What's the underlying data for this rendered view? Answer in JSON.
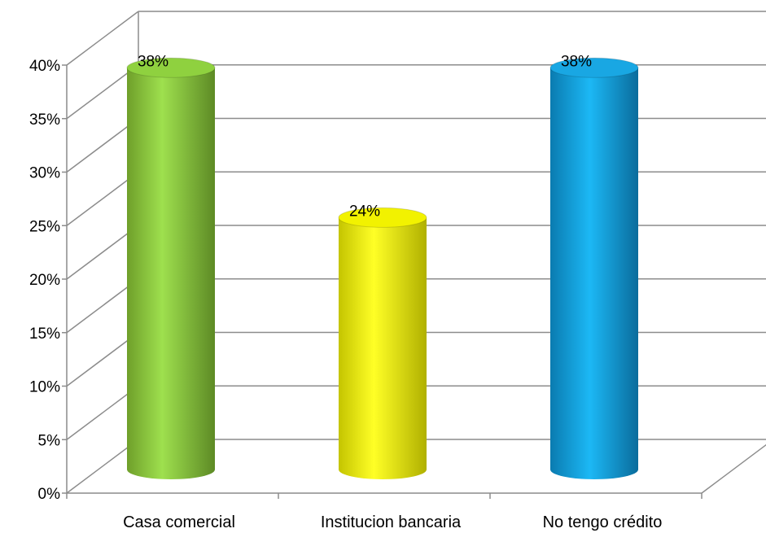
{
  "chart_data": {
    "type": "bar",
    "categories": [
      "Casa comercial",
      "Institucion bancaria",
      "No tengo crédito"
    ],
    "values": [
      38,
      24,
      38
    ],
    "data_labels": [
      "38%",
      "24%",
      "38%"
    ],
    "colors": [
      "#8fd13f",
      "#f2f200",
      "#19a7e3"
    ],
    "ylim": [
      0,
      40
    ],
    "yticks": [
      "0%",
      "5%",
      "10%",
      "15%",
      "20%",
      "25%",
      "30%",
      "35%",
      "40%"
    ],
    "grid": true,
    "legend": "none",
    "title": "",
    "xlabel": "",
    "ylabel": ""
  }
}
